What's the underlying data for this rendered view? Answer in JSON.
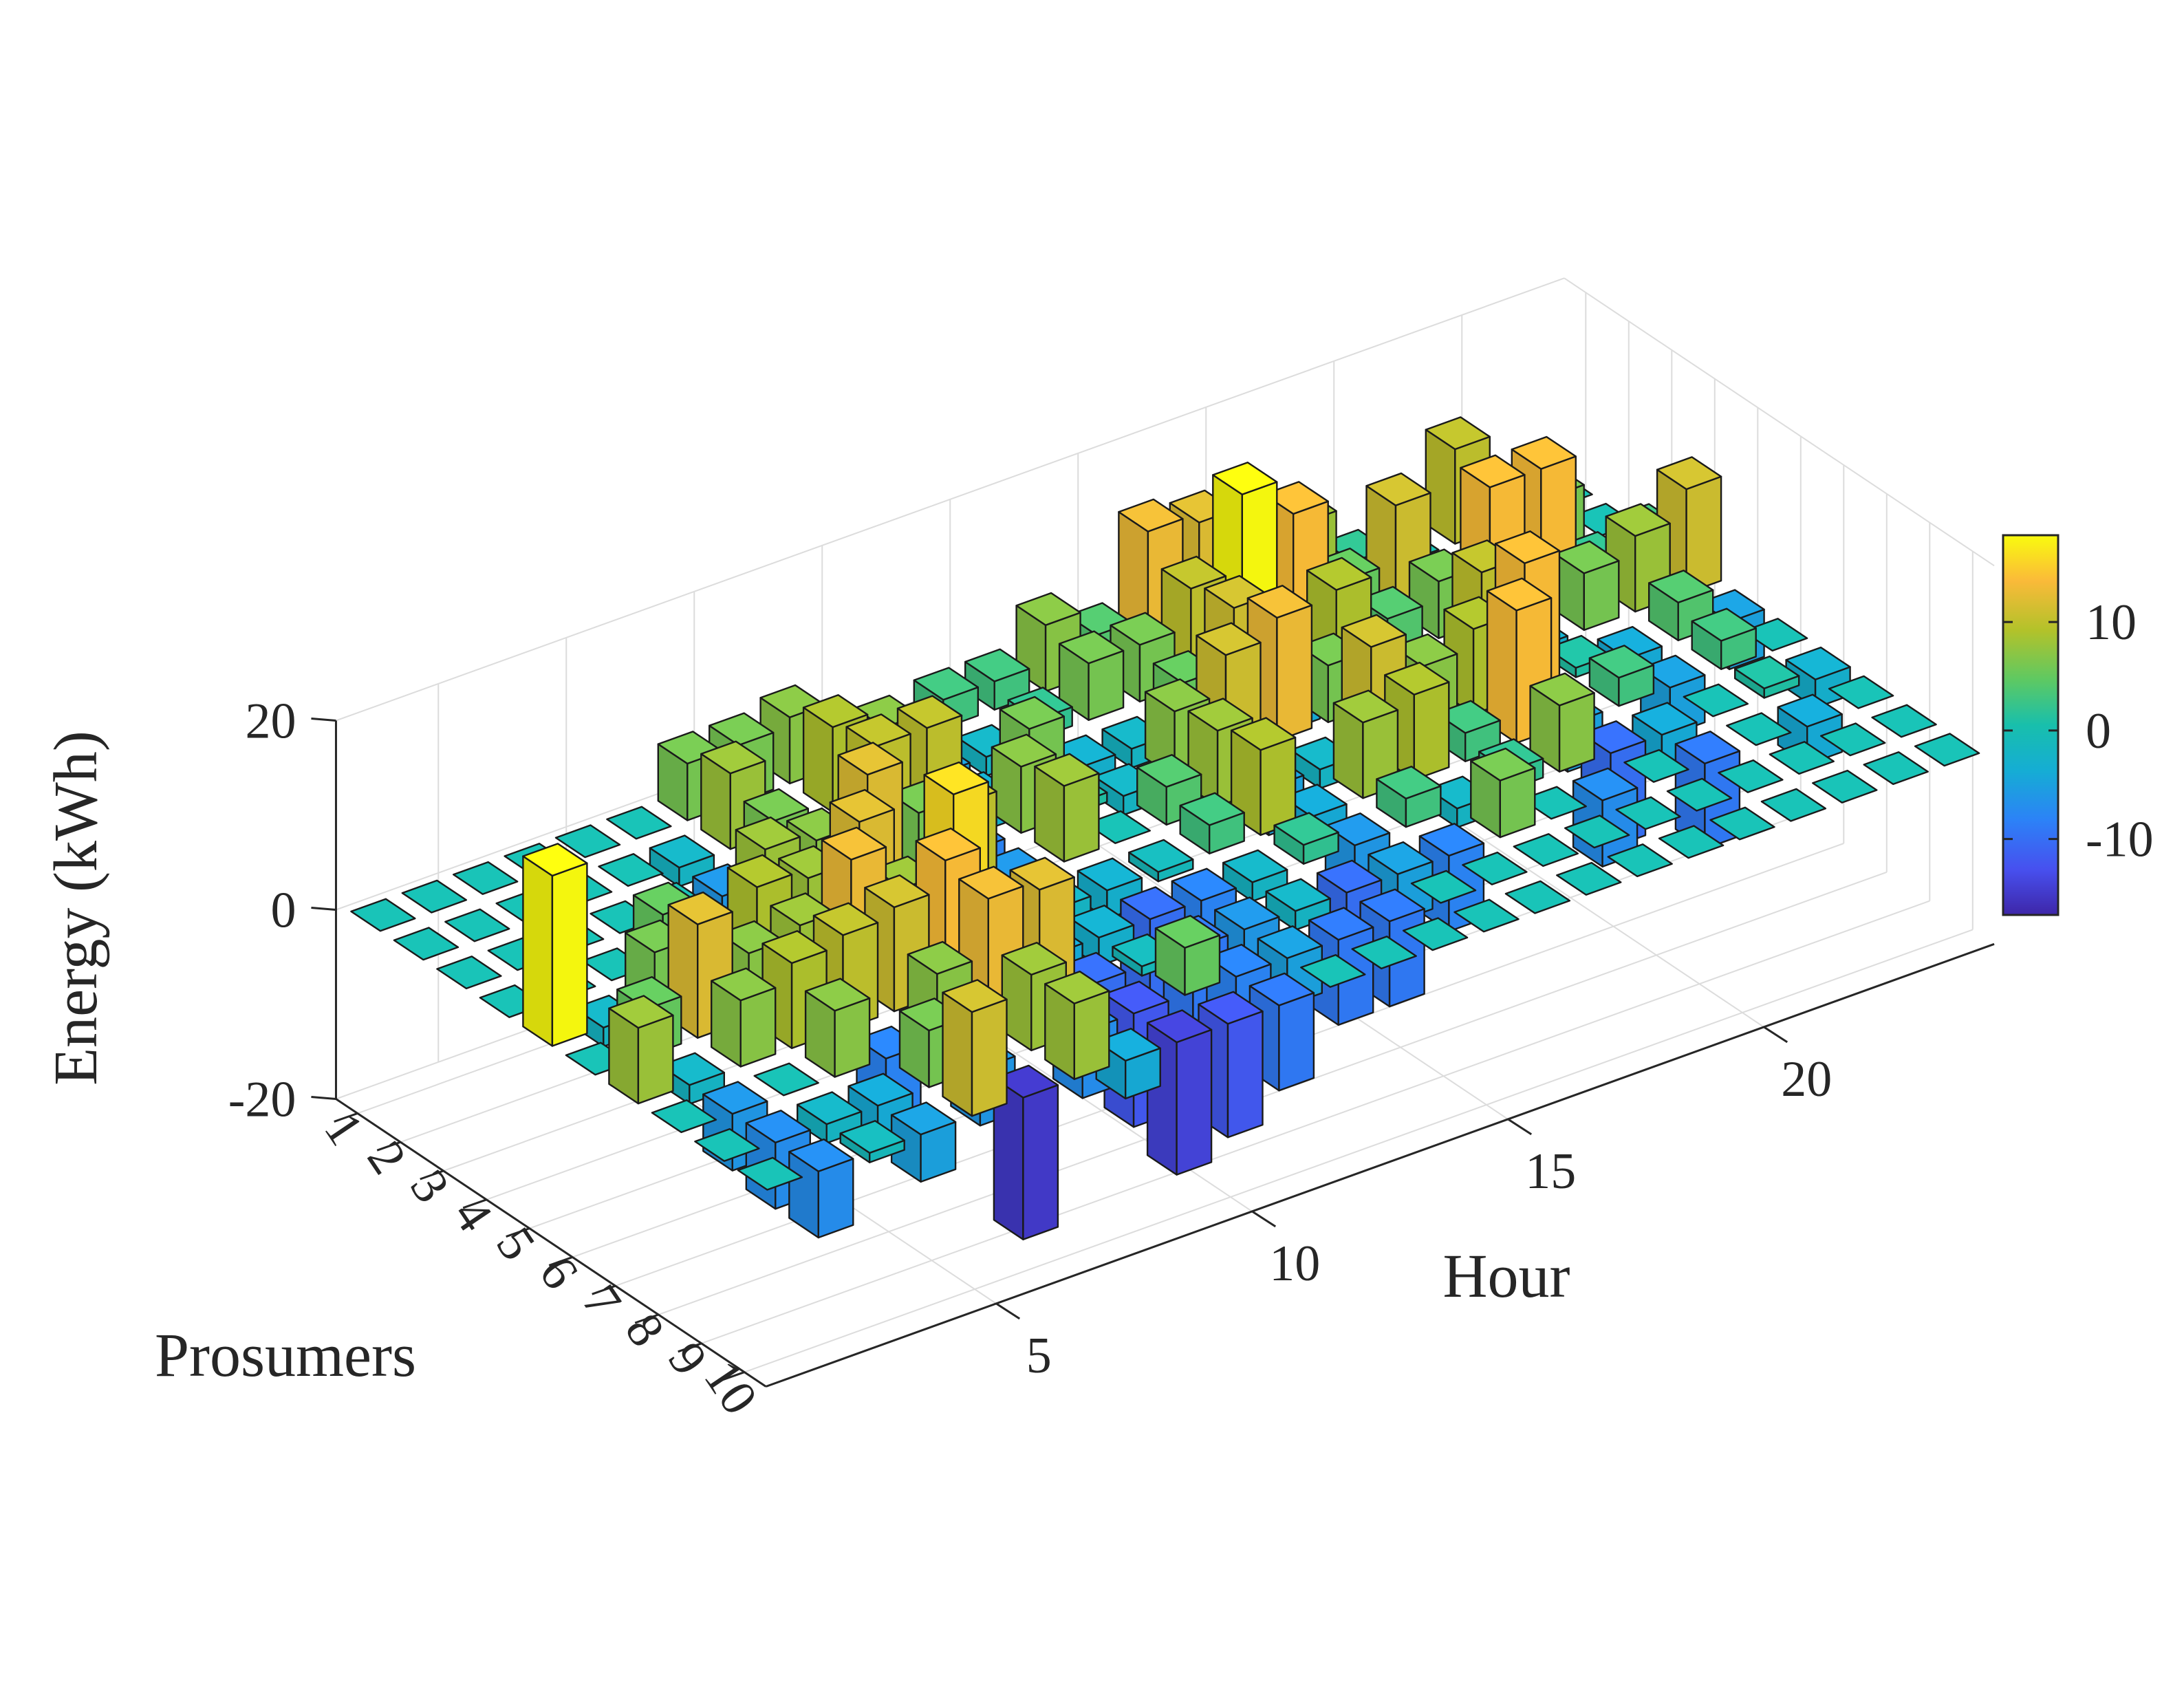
{
  "chart_data": {
    "type": "bar3d",
    "xlabel": "Hour",
    "ylabel": "Prosumers",
    "zlabel": "Energy (kWh)",
    "x_ticks": [
      5,
      10,
      15,
      20
    ],
    "y_ticks": [
      1,
      2,
      3,
      4,
      5,
      6,
      7,
      8,
      9,
      10
    ],
    "z_ticks": [
      -20,
      0,
      20
    ],
    "zlim": [
      -20,
      20
    ],
    "hours": [
      1,
      2,
      3,
      4,
      5,
      6,
      7,
      8,
      9,
      10,
      11,
      12,
      13,
      14,
      15,
      16,
      17,
      18,
      19,
      20,
      21,
      22,
      23,
      24
    ],
    "prosumers": [
      1,
      2,
      3,
      4,
      5,
      6,
      7,
      8,
      9,
      10
    ],
    "colorbar": {
      "ticks": [
        10,
        0,
        -10
      ],
      "clim": [
        -17,
        18
      ]
    },
    "values": [
      [
        0,
        0,
        0,
        0,
        0,
        0,
        6,
        6,
        7,
        0,
        -2,
        3,
        3,
        7,
        4,
        13,
        12,
        4,
        8,
        2,
        0,
        10,
        0,
        0
      ],
      [
        0,
        0,
        0,
        0,
        0,
        -2,
        8,
        0,
        9,
        7,
        -5,
        -2,
        2,
        6,
        6,
        10,
        18,
        14,
        5,
        11,
        0,
        8,
        6,
        0
      ],
      [
        0,
        0,
        0,
        0,
        0,
        -6,
        6,
        -4,
        10,
        10,
        -3,
        6,
        -3,
        -2,
        5,
        11,
        -4,
        9,
        4,
        6,
        14,
        14,
        2,
        3
      ],
      [
        0,
        0,
        0,
        5,
        -6,
        8,
        7,
        12,
        6,
        -8,
        7,
        1,
        -2,
        7,
        11,
        13,
        6,
        4,
        -3,
        10,
        -3,
        6,
        8,
        11
      ],
      [
        18,
        -2,
        6,
        4,
        9,
        8,
        12,
        0,
        10,
        -6,
        8,
        0,
        4,
        8,
        -5,
        -2,
        11,
        7,
        9,
        14,
        1,
        -4,
        4,
        -5
      ],
      [
        0,
        5,
        12,
        7,
        8,
        13,
        8,
        16,
        -2,
        -2,
        -3,
        -1,
        3,
        9,
        -4,
        8,
        9,
        3,
        14,
        -5,
        3,
        -5,
        3,
        0
      ],
      [
        8,
        -2,
        7,
        9,
        10,
        11,
        14,
        0,
        -4,
        -3,
        -10,
        -8,
        -2,
        2,
        -6,
        3,
        -2,
        2,
        7,
        -10,
        -4,
        0,
        1,
        -3
      ],
      [
        0,
        -6,
        0,
        7,
        -8,
        7,
        13,
        12,
        -10,
        -1,
        -9,
        -6,
        -2,
        -10,
        -5,
        -8,
        6,
        0,
        -7,
        0,
        -9,
        0,
        -4,
        0
      ],
      [
        0,
        -7,
        -2,
        -4,
        6,
        -6,
        8,
        -7,
        -12,
        5,
        -8,
        -5,
        -9,
        -9,
        0,
        0,
        0,
        0,
        0,
        0,
        0,
        0,
        0,
        0
      ],
      [
        0,
        -7,
        -1,
        -5,
        11,
        -15,
        8,
        -4,
        -14,
        -12,
        -9,
        0,
        0,
        0,
        0,
        0,
        0,
        0,
        0,
        0,
        0,
        0,
        0,
        0
      ]
    ]
  }
}
